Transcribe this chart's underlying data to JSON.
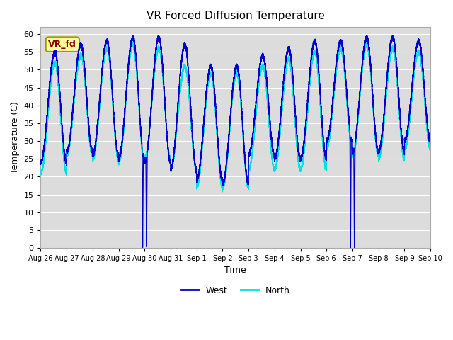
{
  "title": "VR Forced Diffusion Temperature",
  "xlabel": "Time",
  "ylabel": "Temperature (C)",
  "ylim": [
    0,
    62
  ],
  "bg_color": "#dcdcdc",
  "west_color": "#0000cc",
  "north_color": "#00e0e0",
  "legend_label_west": "West",
  "legend_label_north": "North",
  "vr_fd_label": "VR_fd",
  "x_tick_labels": [
    "Aug 26",
    "Aug 27",
    "Aug 28",
    "Aug 29",
    "Aug 30",
    "Aug 31",
    "Sep 1",
    "Sep 2",
    "Sep 3",
    "Sep 4",
    "Sep 5",
    "Sep 6",
    "Sep 7",
    "Sep 8",
    "Sep 9",
    "Sep 10"
  ],
  "x_tick_positions": [
    0,
    1,
    2,
    3,
    4,
    5,
    6,
    7,
    8,
    9,
    10,
    11,
    12,
    13,
    14,
    15
  ]
}
